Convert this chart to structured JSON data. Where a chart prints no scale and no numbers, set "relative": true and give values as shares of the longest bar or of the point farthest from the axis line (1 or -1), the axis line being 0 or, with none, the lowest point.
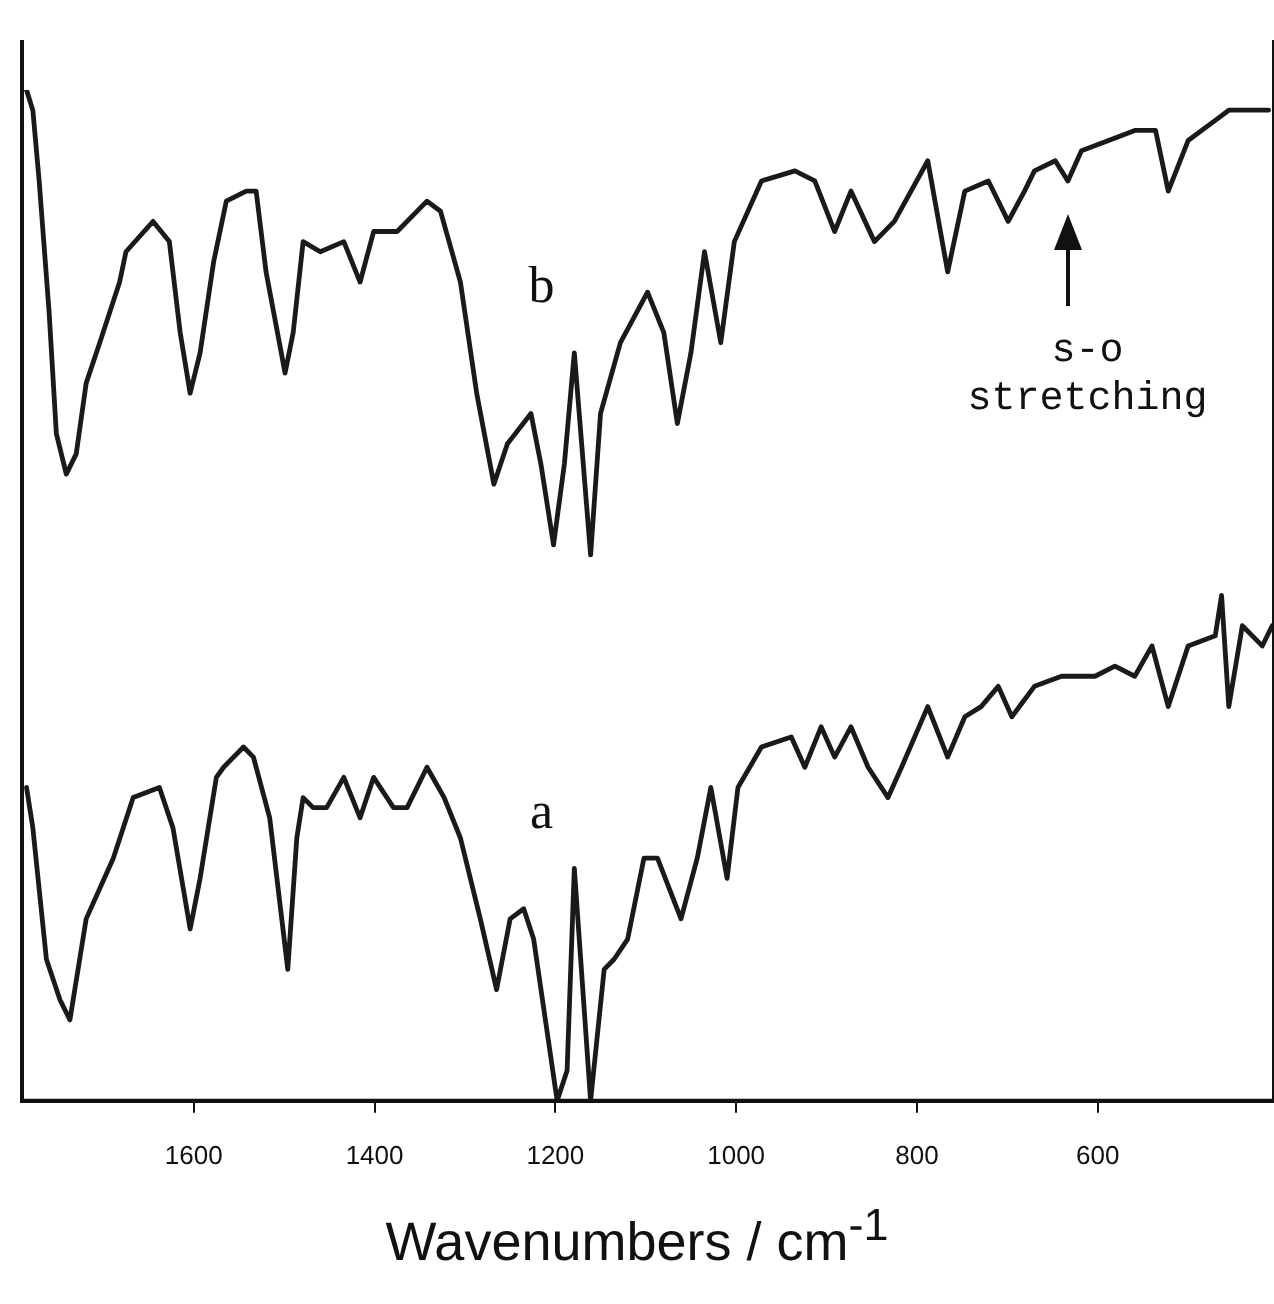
{
  "chart_data": {
    "type": "line",
    "relative": true,
    "xlabel": "Wavenumbers / cm$^{-1}$",
    "xlim": [
      1790,
      405
    ],
    "xticks": [
      1600,
      1400,
      1200,
      1000,
      800,
      600
    ],
    "grid": false,
    "legend": false,
    "marker": "none",
    "line_style": "solid",
    "annotations": [
      "s-o stretching"
    ],
    "series": [
      {
        "name": "b",
        "color": "#1a1a1a",
        "x": [
          1785,
          1778,
          1771,
          1760,
          1752,
          1741,
          1730,
          1719,
          1704,
          1682,
          1675,
          1645,
          1627,
          1615,
          1604,
          1593,
          1578,
          1564,
          1542,
          1531,
          1520,
          1499,
          1490,
          1479,
          1460,
          1434,
          1416,
          1401,
          1375,
          1342,
          1327,
          1305,
          1287,
          1268,
          1253,
          1227,
          1216,
          1202,
          1190,
          1179,
          1161,
          1150,
          1128,
          1098,
          1080,
          1065,
          1050,
          1035,
          1017,
          1002,
          972,
          935,
          913,
          891,
          873,
          847,
          825,
          788,
          766,
          747,
          721,
          699,
          681,
          670,
          647,
          633,
          618,
          588,
          559,
          536,
          522,
          500,
          470,
          455,
          433,
          411
        ],
        "values": [
          1.0,
          0.98,
          0.91,
          0.78,
          0.66,
          0.62,
          0.64,
          0.71,
          0.75,
          0.81,
          0.84,
          0.87,
          0.85,
          0.76,
          0.7,
          0.74,
          0.83,
          0.89,
          0.9,
          0.9,
          0.82,
          0.72,
          0.76,
          0.85,
          0.84,
          0.85,
          0.81,
          0.86,
          0.86,
          0.89,
          0.88,
          0.81,
          0.7,
          0.61,
          0.65,
          0.68,
          0.63,
          0.55,
          0.63,
          0.74,
          0.54,
          0.68,
          0.75,
          0.8,
          0.76,
          0.67,
          0.74,
          0.84,
          0.75,
          0.85,
          0.91,
          0.92,
          0.91,
          0.86,
          0.9,
          0.85,
          0.87,
          0.93,
          0.82,
          0.9,
          0.91,
          0.87,
          0.9,
          0.92,
          0.93,
          0.91,
          0.94,
          0.95,
          0.96,
          0.96,
          0.9,
          0.95,
          0.97,
          0.98,
          0.98,
          0.98
        ]
      },
      {
        "name": "a",
        "color": "#1a1a1a",
        "x": [
          1785,
          1778,
          1763,
          1748,
          1737,
          1719,
          1689,
          1667,
          1638,
          1623,
          1604,
          1593,
          1575,
          1567,
          1545,
          1534,
          1516,
          1496,
          1486,
          1479,
          1468,
          1453,
          1434,
          1416,
          1401,
          1379,
          1364,
          1342,
          1323,
          1305,
          1283,
          1265,
          1250,
          1235,
          1224,
          1198,
          1187,
          1179,
          1161,
          1146,
          1135,
          1120,
          1102,
          1087,
          1061,
          1043,
          1028,
          1010,
          998,
          972,
          939,
          924,
          906,
          891,
          873,
          854,
          832,
          817,
          788,
          766,
          747,
          729,
          710,
          695,
          670,
          640,
          603,
          581,
          559,
          540,
          522,
          500,
          470,
          463,
          455,
          440,
          418,
          407
        ],
        "values": [
          0.31,
          0.27,
          0.14,
          0.1,
          0.08,
          0.18,
          0.24,
          0.3,
          0.31,
          0.27,
          0.17,
          0.22,
          0.32,
          0.33,
          0.35,
          0.34,
          0.28,
          0.13,
          0.26,
          0.3,
          0.29,
          0.29,
          0.32,
          0.28,
          0.32,
          0.29,
          0.29,
          0.33,
          0.3,
          0.26,
          0.18,
          0.11,
          0.18,
          0.19,
          0.16,
          0.0,
          0.03,
          0.23,
          0.0,
          0.13,
          0.14,
          0.16,
          0.24,
          0.24,
          0.18,
          0.24,
          0.31,
          0.22,
          0.31,
          0.35,
          0.36,
          0.33,
          0.37,
          0.34,
          0.37,
          0.33,
          0.3,
          0.33,
          0.39,
          0.34,
          0.38,
          0.39,
          0.41,
          0.38,
          0.41,
          0.42,
          0.42,
          0.43,
          0.42,
          0.45,
          0.39,
          0.45,
          0.46,
          0.5,
          0.39,
          0.47,
          0.45,
          0.47
        ]
      }
    ]
  }
}
